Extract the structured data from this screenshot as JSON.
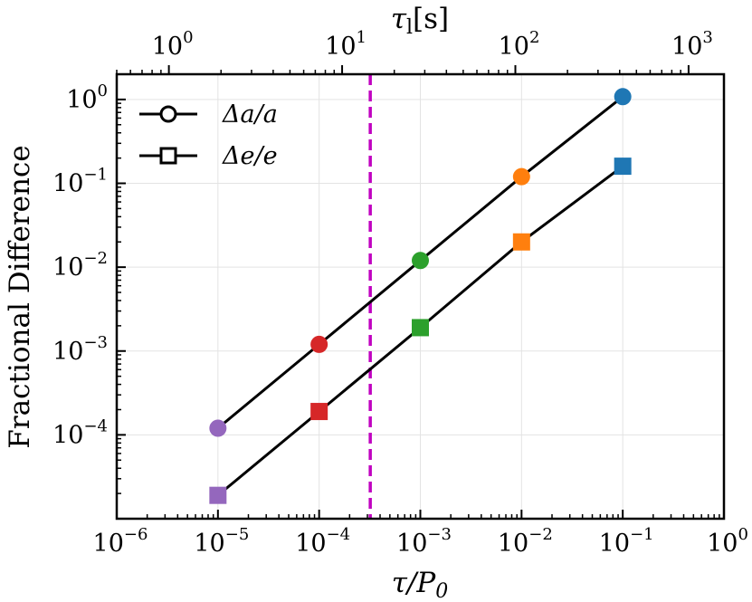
{
  "chart_data": {
    "type": "scatter",
    "title": "",
    "xlabel": "τ/P0",
    "ylabel": "Fractional Difference",
    "top_xlabel": "τl[s]",
    "xscale": "log",
    "yscale": "log",
    "xlim": [
      1e-06,
      1
    ],
    "ylim": [
      1e-05,
      2
    ],
    "top_xlim": [
      0.5,
      1600
    ],
    "x_ticks": [
      {
        "value": 1e-06,
        "base": "10",
        "exp": "−6"
      },
      {
        "value": 1e-05,
        "base": "10",
        "exp": "−5"
      },
      {
        "value": 0.0001,
        "base": "10",
        "exp": "−4"
      },
      {
        "value": 0.001,
        "base": "10",
        "exp": "−3"
      },
      {
        "value": 0.01,
        "base": "10",
        "exp": "−2"
      },
      {
        "value": 0.1,
        "base": "10",
        "exp": "−1"
      },
      {
        "value": 1,
        "base": "10",
        "exp": "0"
      }
    ],
    "y_ticks": [
      {
        "value": 0.0001,
        "base": "10",
        "exp": "−4"
      },
      {
        "value": 0.001,
        "base": "10",
        "exp": "−3"
      },
      {
        "value": 0.01,
        "base": "10",
        "exp": "−2"
      },
      {
        "value": 0.1,
        "base": "10",
        "exp": "−1"
      },
      {
        "value": 1,
        "base": "10",
        "exp": "0"
      }
    ],
    "top_ticks": [
      {
        "value": 1,
        "base": "10",
        "exp": "0"
      },
      {
        "value": 10,
        "base": "10",
        "exp": "1"
      },
      {
        "value": 100,
        "base": "10",
        "exp": "2"
      },
      {
        "value": 1000,
        "base": "10",
        "exp": "3"
      }
    ],
    "x": [
      1e-05,
      0.0001,
      0.001,
      0.01,
      0.1
    ],
    "point_colors": [
      "#9467bd",
      "#d62728",
      "#2ca02c",
      "#ff7f0e",
      "#1f77b4"
    ],
    "series": [
      {
        "name": "Δa/a",
        "marker": "circle",
        "values": [
          0.00012,
          0.0012,
          0.012,
          0.12,
          1.08
        ]
      },
      {
        "name": "Δe/e",
        "marker": "square",
        "values": [
          1.9e-05,
          0.00019,
          0.0019,
          0.02,
          0.16
        ]
      }
    ],
    "vline": {
      "x": 0.00032,
      "color": "#c000c0",
      "style": "dashed"
    },
    "line_color": "#000000",
    "grid": true,
    "legend_location": "top-left",
    "legend": [
      {
        "label": "Δa/a",
        "marker": "circle"
      },
      {
        "label": "Δe/e",
        "marker": "square"
      }
    ]
  }
}
